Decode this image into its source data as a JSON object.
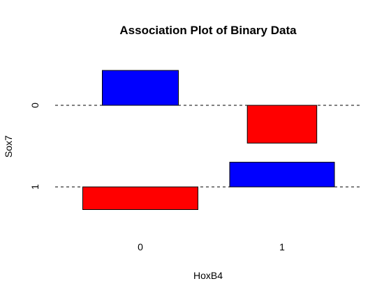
{
  "chart_data": {
    "type": "association",
    "title": "Association Plot of Binary Data",
    "xlabel": "HoxB4",
    "ylabel": "Sox7",
    "x_categories": [
      "0",
      "1"
    ],
    "y_categories": [
      "0",
      "1"
    ],
    "cells": [
      {
        "x": "0",
        "y": "0",
        "residual": 1.2,
        "width": 1.0,
        "color": "#0000ff"
      },
      {
        "x": "1",
        "y": "0",
        "residual": -1.3,
        "width": 0.913,
        "color": "#ff0000"
      },
      {
        "x": "0",
        "y": "1",
        "residual": -0.78,
        "width": 1.514,
        "color": "#ff0000"
      },
      {
        "x": "1",
        "y": "1",
        "residual": 0.85,
        "width": 1.376,
        "color": "#0000ff"
      }
    ],
    "residual_scale_max": 1.3,
    "grid": false,
    "legend": "none"
  }
}
